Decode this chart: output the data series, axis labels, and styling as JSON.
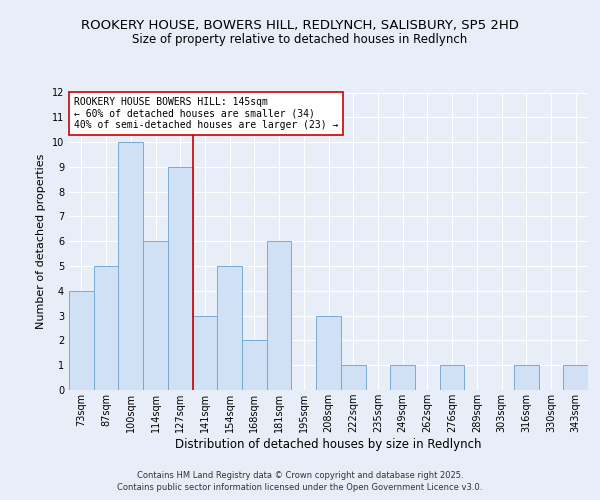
{
  "title_line1": "ROOKERY HOUSE, BOWERS HILL, REDLYNCH, SALISBURY, SP5 2HD",
  "title_line2": "Size of property relative to detached houses in Redlynch",
  "xlabel": "Distribution of detached houses by size in Redlynch",
  "ylabel": "Number of detached properties",
  "categories": [
    "73sqm",
    "87sqm",
    "100sqm",
    "114sqm",
    "127sqm",
    "141sqm",
    "154sqm",
    "168sqm",
    "181sqm",
    "195sqm",
    "208sqm",
    "222sqm",
    "235sqm",
    "249sqm",
    "262sqm",
    "276sqm",
    "289sqm",
    "303sqm",
    "316sqm",
    "330sqm",
    "343sqm"
  ],
  "values": [
    4,
    5,
    10,
    6,
    9,
    3,
    5,
    2,
    6,
    0,
    3,
    1,
    0,
    1,
    0,
    1,
    0,
    0,
    1,
    0,
    1
  ],
  "bar_color": "#d0e0f5",
  "bar_edge_color": "#7aaad0",
  "vline_x_index": 5,
  "vline_color": "#cc0000",
  "annotation_line1": "ROOKERY HOUSE BOWERS HILL: 145sqm",
  "annotation_line2": "← 60% of detached houses are smaller (34)",
  "annotation_line3": "40% of semi-detached houses are larger (23) →",
  "annotation_box_color": "#cc0000",
  "background_color": "#e8eef8",
  "plot_bg_color": "#e8eef8",
  "ylim": [
    0,
    12
  ],
  "yticks": [
    0,
    1,
    2,
    3,
    4,
    5,
    6,
    7,
    8,
    9,
    10,
    11,
    12
  ],
  "title_fontsize": 9.5,
  "subtitle_fontsize": 8.5,
  "xlabel_fontsize": 8.5,
  "ylabel_fontsize": 8,
  "tick_fontsize": 7,
  "annotation_fontsize": 7,
  "footer_text": "Contains HM Land Registry data © Crown copyright and database right 2025.\nContains public sector information licensed under the Open Government Licence v3.0.",
  "footer_fontsize": 6
}
